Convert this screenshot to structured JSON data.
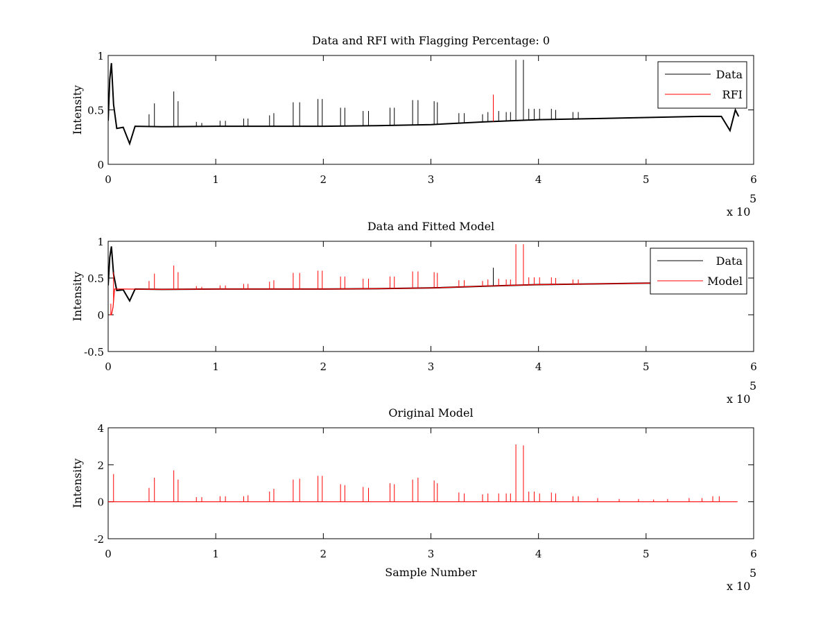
{
  "figure": {
    "background": "#ffffff",
    "colors": {
      "data": "#000000",
      "rfi": "#ff0000",
      "model": "#ff0000"
    }
  },
  "chart_data": [
    {
      "type": "line",
      "title": "Data and RFI with Flagging Percentage: 0",
      "xlabel": "",
      "ylabel": "Intensity",
      "xlim": [
        0,
        600000
      ],
      "ylim": [
        0,
        1
      ],
      "xticks": [
        "0",
        "1",
        "2",
        "3",
        "4",
        "5",
        "6"
      ],
      "yticks": [
        "0",
        "0.5",
        "1"
      ],
      "x_exponent": {
        "base": "x 10",
        "power": "5"
      },
      "legend": {
        "position": "top-right",
        "entries": [
          "Data",
          "RFI"
        ]
      },
      "series": [
        {
          "name": "Data",
          "color": "#000000",
          "baseline": [
            [
              0,
              0.4
            ],
            [
              1500,
              0.78
            ],
            [
              3000,
              0.93
            ],
            [
              5000,
              0.55
            ],
            [
              8000,
              0.33
            ],
            [
              14000,
              0.34
            ],
            [
              20000,
              0.19
            ],
            [
              25000,
              0.35
            ],
            [
              50000,
              0.345
            ],
            [
              100000,
              0.35
            ],
            [
              150000,
              0.35
            ],
            [
              200000,
              0.35
            ],
            [
              250000,
              0.355
            ],
            [
              300000,
              0.365
            ],
            [
              350000,
              0.39
            ],
            [
              400000,
              0.41
            ],
            [
              450000,
              0.42
            ],
            [
              500000,
              0.43
            ],
            [
              550000,
              0.44
            ],
            [
              570000,
              0.44
            ],
            [
              578000,
              0.31
            ],
            [
              583000,
              0.5
            ],
            [
              586000,
              0.44
            ]
          ],
          "spikes": [
            [
              5000,
              0.58
            ],
            [
              38000,
              0.46
            ],
            [
              43000,
              0.56
            ],
            [
              61000,
              0.67
            ],
            [
              65000,
              0.58
            ],
            [
              82000,
              0.39
            ],
            [
              87000,
              0.38
            ],
            [
              104000,
              0.4
            ],
            [
              109000,
              0.4
            ],
            [
              126000,
              0.42
            ],
            [
              130000,
              0.42
            ],
            [
              150000,
              0.45
            ],
            [
              154000,
              0.47
            ],
            [
              172000,
              0.57
            ],
            [
              178000,
              0.57
            ],
            [
              195000,
              0.6
            ],
            [
              199000,
              0.6
            ],
            [
              216000,
              0.52
            ],
            [
              220000,
              0.52
            ],
            [
              237000,
              0.49
            ],
            [
              242000,
              0.49
            ],
            [
              262000,
              0.52
            ],
            [
              266000,
              0.52
            ],
            [
              283000,
              0.59
            ],
            [
              288000,
              0.59
            ],
            [
              303000,
              0.58
            ],
            [
              306000,
              0.57
            ],
            [
              326000,
              0.47
            ],
            [
              331000,
              0.47
            ],
            [
              348000,
              0.46
            ],
            [
              353000,
              0.48
            ],
            [
              363000,
              0.49
            ],
            [
              370000,
              0.48
            ],
            [
              374000,
              0.48
            ],
            [
              379000,
              0.96
            ],
            [
              386000,
              0.96
            ],
            [
              391000,
              0.51
            ],
            [
              396000,
              0.51
            ],
            [
              401000,
              0.51
            ],
            [
              412000,
              0.51
            ],
            [
              416000,
              0.5
            ],
            [
              432000,
              0.48
            ],
            [
              437000,
              0.48
            ]
          ]
        },
        {
          "name": "RFI",
          "color": "#ff0000",
          "spikes": [
            [
              358000,
              0.64
            ]
          ]
        }
      ]
    },
    {
      "type": "line",
      "title": "Data and Fitted Model",
      "xlabel": "",
      "ylabel": "Intensity",
      "xlim": [
        0,
        600000
      ],
      "ylim": [
        -0.5,
        1
      ],
      "xticks": [
        "0",
        "1",
        "2",
        "3",
        "4",
        "5",
        "6"
      ],
      "yticks": [
        "-0.5",
        "0",
        "0.5",
        "1"
      ],
      "x_exponent": {
        "base": "x 10",
        "power": "5"
      },
      "legend": {
        "position": "top-right",
        "entries": [
          "Data",
          "Model"
        ]
      },
      "series": [
        {
          "name": "Data",
          "color": "#000000",
          "baseline": [
            [
              0,
              0.4
            ],
            [
              1500,
              0.78
            ],
            [
              3000,
              0.93
            ],
            [
              5000,
              0.55
            ],
            [
              8000,
              0.33
            ],
            [
              14000,
              0.34
            ],
            [
              20000,
              0.19
            ],
            [
              25000,
              0.35
            ],
            [
              50000,
              0.345
            ],
            [
              100000,
              0.35
            ],
            [
              150000,
              0.35
            ],
            [
              200000,
              0.35
            ],
            [
              250000,
              0.355
            ],
            [
              300000,
              0.365
            ],
            [
              350000,
              0.39
            ],
            [
              400000,
              0.41
            ],
            [
              450000,
              0.42
            ],
            [
              500000,
              0.43
            ],
            [
              520000,
              0.43
            ]
          ],
          "spikes": [
            [
              358000,
              0.64
            ]
          ]
        },
        {
          "name": "Model",
          "color": "#ff0000",
          "baseline": [
            [
              1500,
              0.0
            ],
            [
              3000,
              0.0
            ],
            [
              4500,
              0.1
            ],
            [
              6000,
              0.35
            ],
            [
              14000,
              0.35
            ],
            [
              50000,
              0.345
            ],
            [
              100000,
              0.35
            ],
            [
              150000,
              0.35
            ],
            [
              200000,
              0.35
            ],
            [
              250000,
              0.355
            ],
            [
              300000,
              0.365
            ],
            [
              350000,
              0.39
            ],
            [
              400000,
              0.41
            ],
            [
              450000,
              0.42
            ],
            [
              500000,
              0.43
            ],
            [
              520000,
              0.43
            ]
          ],
          "spikes": [
            [
              2500,
              0.15
            ],
            [
              5000,
              0.58
            ],
            [
              38000,
              0.46
            ],
            [
              43000,
              0.56
            ],
            [
              61000,
              0.67
            ],
            [
              65000,
              0.58
            ],
            [
              82000,
              0.39
            ],
            [
              87000,
              0.38
            ],
            [
              104000,
              0.4
            ],
            [
              109000,
              0.4
            ],
            [
              126000,
              0.42
            ],
            [
              130000,
              0.42
            ],
            [
              150000,
              0.45
            ],
            [
              154000,
              0.47
            ],
            [
              172000,
              0.57
            ],
            [
              178000,
              0.57
            ],
            [
              195000,
              0.6
            ],
            [
              199000,
              0.6
            ],
            [
              216000,
              0.52
            ],
            [
              220000,
              0.52
            ],
            [
              237000,
              0.49
            ],
            [
              242000,
              0.49
            ],
            [
              262000,
              0.52
            ],
            [
              266000,
              0.52
            ],
            [
              283000,
              0.59
            ],
            [
              288000,
              0.59
            ],
            [
              303000,
              0.58
            ],
            [
              306000,
              0.57
            ],
            [
              326000,
              0.47
            ],
            [
              331000,
              0.47
            ],
            [
              348000,
              0.46
            ],
            [
              353000,
              0.48
            ],
            [
              363000,
              0.49
            ],
            [
              370000,
              0.48
            ],
            [
              374000,
              0.48
            ],
            [
              379000,
              0.96
            ],
            [
              386000,
              0.96
            ],
            [
              391000,
              0.51
            ],
            [
              396000,
              0.51
            ],
            [
              401000,
              0.51
            ],
            [
              412000,
              0.51
            ],
            [
              416000,
              0.5
            ],
            [
              432000,
              0.48
            ],
            [
              437000,
              0.48
            ]
          ]
        }
      ]
    },
    {
      "type": "line",
      "title": "Original Model",
      "xlabel": "Sample Number",
      "ylabel": "Intensity",
      "xlim": [
        0,
        600000
      ],
      "ylim": [
        -2,
        4
      ],
      "xticks": [
        "0",
        "1",
        "2",
        "3",
        "4",
        "5",
        "6"
      ],
      "yticks": [
        "-2",
        "0",
        "2",
        "4"
      ],
      "x_exponent": {
        "base": "x 10",
        "power": "5"
      },
      "series": [
        {
          "color": "#ff0000",
          "baseline": [
            [
              0,
              0
            ],
            [
              585000,
              0
            ]
          ],
          "spikes": [
            [
              5000,
              1.5
            ],
            [
              38000,
              0.75
            ],
            [
              43000,
              1.3
            ],
            [
              61000,
              1.7
            ],
            [
              65000,
              1.2
            ],
            [
              82000,
              0.25
            ],
            [
              87000,
              0.25
            ],
            [
              104000,
              0.3
            ],
            [
              109000,
              0.3
            ],
            [
              126000,
              0.3
            ],
            [
              130000,
              0.35
            ],
            [
              150000,
              0.55
            ],
            [
              154000,
              0.7
            ],
            [
              172000,
              1.2
            ],
            [
              178000,
              1.25
            ],
            [
              195000,
              1.4
            ],
            [
              199000,
              1.4
            ],
            [
              216000,
              0.95
            ],
            [
              220000,
              0.9
            ],
            [
              237000,
              0.8
            ],
            [
              242000,
              0.75
            ],
            [
              262000,
              1.0
            ],
            [
              266000,
              0.95
            ],
            [
              283000,
              1.2
            ],
            [
              288000,
              1.3
            ],
            [
              303000,
              1.15
            ],
            [
              306000,
              1.0
            ],
            [
              326000,
              0.5
            ],
            [
              331000,
              0.45
            ],
            [
              348000,
              0.4
            ],
            [
              353000,
              0.45
            ],
            [
              363000,
              0.45
            ],
            [
              370000,
              0.45
            ],
            [
              374000,
              0.45
            ],
            [
              379000,
              3.1
            ],
            [
              386000,
              3.05
            ],
            [
              391000,
              0.55
            ],
            [
              396000,
              0.55
            ],
            [
              401000,
              0.45
            ],
            [
              412000,
              0.5
            ],
            [
              416000,
              0.45
            ],
            [
              432000,
              0.3
            ],
            [
              437000,
              0.3
            ],
            [
              455000,
              0.2
            ],
            [
              475000,
              0.15
            ],
            [
              493000,
              0.15
            ],
            [
              507000,
              0.12
            ],
            [
              520000,
              0.15
            ],
            [
              540000,
              0.2
            ],
            [
              552000,
              0.2
            ],
            [
              562000,
              0.3
            ],
            [
              568000,
              0.3
            ]
          ]
        }
      ]
    }
  ]
}
